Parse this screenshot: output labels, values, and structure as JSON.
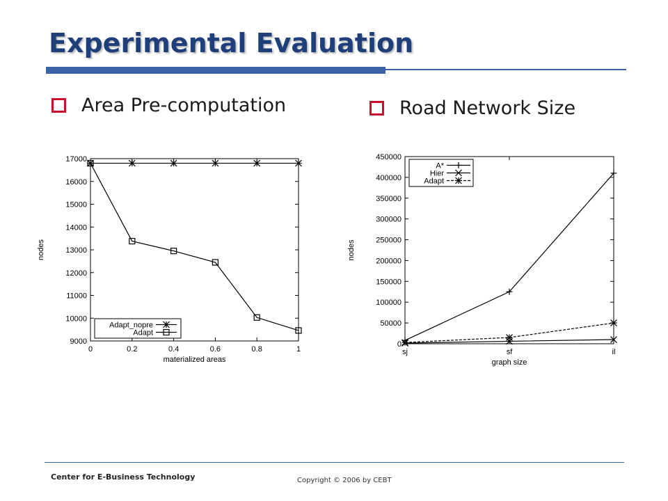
{
  "slide": {
    "title": "Experimental Evaluation",
    "bullets": [
      "Area Pre-computation",
      "Road Network Size"
    ]
  },
  "footer": {
    "organization": "Center for E-Business Technology",
    "copyright": "Copyright © 2006 by CEBT"
  },
  "colors": {
    "title": "#1f3f7a",
    "accent_bar": "#3a62a4",
    "bullet_box": "#c8102e"
  },
  "chart_data": [
    {
      "type": "line",
      "title": "",
      "xlabel": "materialized areas",
      "ylabel": "nodes",
      "xlim": [
        0,
        1
      ],
      "ylim": [
        9000,
        17000
      ],
      "x": [
        0,
        0.2,
        0.4,
        0.6,
        0.8,
        1
      ],
      "x_ticks": [
        "0",
        "0.2",
        "0.4",
        "0.6",
        "0.8",
        "1"
      ],
      "y_ticks": [
        "9000",
        "10000",
        "11000",
        "12000",
        "13000",
        "14000",
        "15000",
        "16000",
        "17000"
      ],
      "legend_position": "bottom-left",
      "series": [
        {
          "name": "Adapt_nopre",
          "marker": "star",
          "values": [
            16800,
            16800,
            16800,
            16800,
            16800,
            16800
          ]
        },
        {
          "name": "Adapt",
          "marker": "square",
          "values": [
            16800,
            13380,
            12950,
            12450,
            10030,
            9460
          ]
        }
      ]
    },
    {
      "type": "line",
      "title": "",
      "xlabel": "graph size",
      "ylabel": "nodes",
      "categories": [
        "sj",
        "sf",
        "il"
      ],
      "ylim": [
        0,
        450000
      ],
      "y_ticks": [
        "0",
        "50000",
        "100000",
        "150000",
        "200000",
        "250000",
        "300000",
        "350000",
        "400000",
        "450000"
      ],
      "legend_position": "top-left",
      "series": [
        {
          "name": "A*",
          "marker": "plus",
          "values": [
            8000,
            125000,
            410000
          ]
        },
        {
          "name": "Hier",
          "marker": "x",
          "values": [
            1500,
            6000,
            10000
          ]
        },
        {
          "name": "Adapt",
          "marker": "star",
          "dashed": true,
          "values": [
            3000,
            15000,
            50000
          ]
        }
      ]
    }
  ]
}
